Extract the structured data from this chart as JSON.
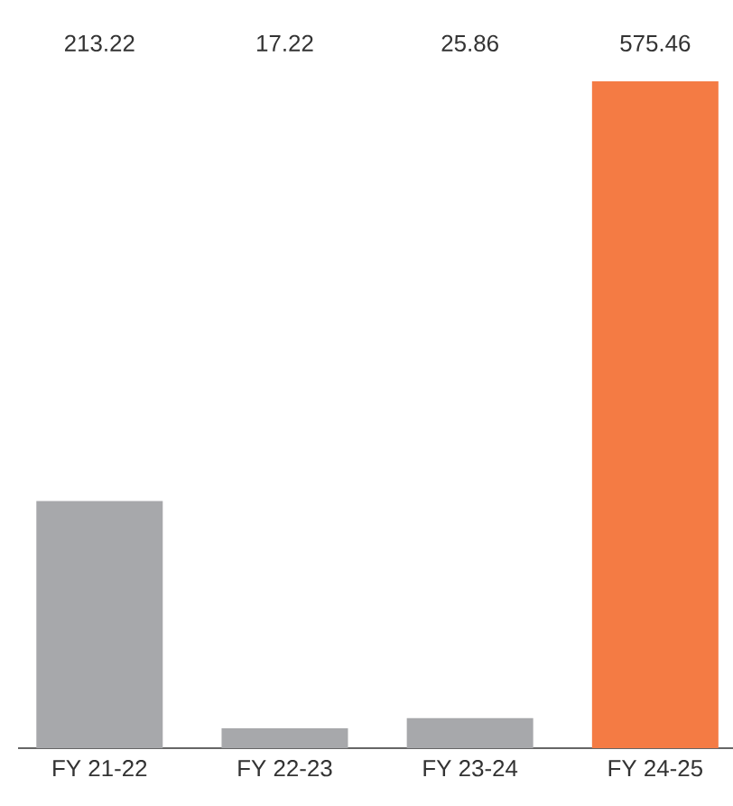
{
  "chart_data": {
    "type": "bar",
    "categories": [
      "FY 21-22",
      "FY 22-23",
      "FY 23-24",
      "FY 24-25"
    ],
    "values": [
      213.22,
      17.22,
      25.86,
      575.46
    ],
    "colors": [
      "#a7a8ab",
      "#a7a8ab",
      "#a7a8ab",
      "#f47b44"
    ],
    "data_labels": true
  }
}
